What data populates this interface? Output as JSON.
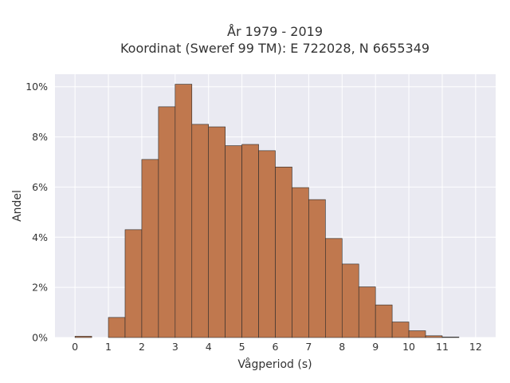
{
  "chart_data": {
    "type": "bar",
    "title_line1": "År 1979 - 2019",
    "title_line2": "Koordinat (Sweref 99 TM): E 722028, N 6655349",
    "xlabel": "Vågperiod (s)",
    "ylabel": "Andel",
    "x_ticks": [
      0,
      1,
      2,
      3,
      4,
      5,
      6,
      7,
      8,
      9,
      10,
      11,
      12
    ],
    "x_tick_labels": [
      "0",
      "1",
      "2",
      "3",
      "4",
      "5",
      "6",
      "7",
      "8",
      "9",
      "10",
      "11",
      "12"
    ],
    "y_ticks": [
      0,
      2,
      4,
      6,
      8,
      10
    ],
    "y_tick_labels": [
      "0%",
      "2%",
      "4%",
      "6%",
      "8%",
      "10%"
    ],
    "xlim": [
      -0.6,
      12.6
    ],
    "ylim": [
      0,
      10.5
    ],
    "bin_width": 0.5,
    "bins": [
      {
        "x_start": 0.0,
        "value": 0.05
      },
      {
        "x_start": 1.0,
        "value": 0.8
      },
      {
        "x_start": 1.5,
        "value": 4.3
      },
      {
        "x_start": 2.0,
        "value": 7.1
      },
      {
        "x_start": 2.5,
        "value": 9.2
      },
      {
        "x_start": 3.0,
        "value": 10.1
      },
      {
        "x_start": 3.5,
        "value": 8.5
      },
      {
        "x_start": 4.0,
        "value": 8.4
      },
      {
        "x_start": 4.5,
        "value": 7.65
      },
      {
        "x_start": 5.0,
        "value": 7.7
      },
      {
        "x_start": 5.5,
        "value": 7.45
      },
      {
        "x_start": 6.0,
        "value": 6.8
      },
      {
        "x_start": 6.5,
        "value": 5.98
      },
      {
        "x_start": 7.0,
        "value": 5.5
      },
      {
        "x_start": 7.5,
        "value": 3.95
      },
      {
        "x_start": 8.0,
        "value": 2.93
      },
      {
        "x_start": 8.5,
        "value": 2.02
      },
      {
        "x_start": 9.0,
        "value": 1.3
      },
      {
        "x_start": 9.5,
        "value": 0.62
      },
      {
        "x_start": 10.0,
        "value": 0.27
      },
      {
        "x_start": 10.5,
        "value": 0.07
      },
      {
        "x_start": 11.0,
        "value": 0.02
      }
    ],
    "bar_color": "#c0784e",
    "plot_bg": "#eaeaf2",
    "grid": true
  }
}
